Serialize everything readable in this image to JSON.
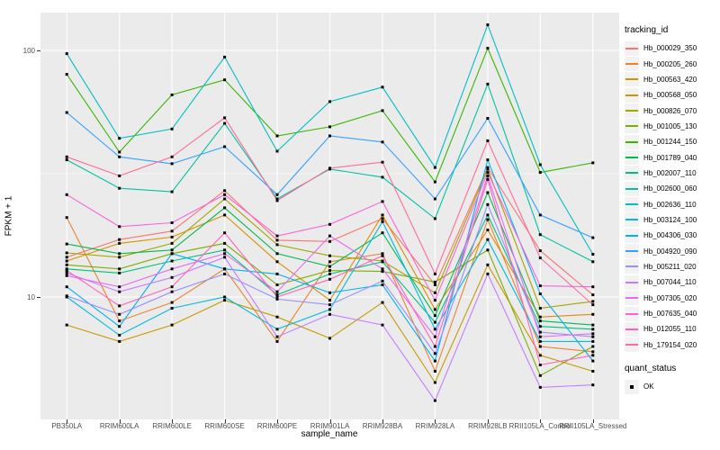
{
  "chart_data": {
    "type": "line",
    "title": "",
    "xlabel": "sample_name",
    "ylabel": "FPKM + 1",
    "y_scale": "log10",
    "y_ticks": [
      100,
      10
    ],
    "ylim": [
      3.2,
      142
    ],
    "grid": true,
    "legend_position": "right",
    "panel_color": "#EBEBEB",
    "gridline_color": "#FFFFFF",
    "point_color": "#000000",
    "categories": [
      "PB350LA",
      "RRIM600LA",
      "RRIM600LE",
      "RRIM600SE",
      "RRIM600PE",
      "RRIM901LA",
      "RRIM928BA",
      "RRIM928LA",
      "RRIM928LB",
      "RRII105LA_Control",
      "RRII105LA_Stressed"
    ],
    "series": [
      {
        "name": "Hb_000029_350",
        "color": "#F8766D",
        "values": [
          14.5,
          17.1,
          18.5,
          27,
          17,
          16.8,
          20.8,
          11.2,
          33.5,
          15.4,
          10.2
        ]
      },
      {
        "name": "Hb_000205_260",
        "color": "#EA8331",
        "values": [
          21,
          8,
          9.5,
          13,
          6.6,
          13.9,
          15,
          5,
          20.6,
          6.3,
          6
        ]
      },
      {
        "name": "Hb_000563_420",
        "color": "#D89000",
        "values": [
          14,
          16.5,
          17.5,
          21.5,
          13.9,
          9.7,
          21.5,
          8.9,
          18.7,
          8.3,
          8.5
        ]
      },
      {
        "name": "Hb_000568_050",
        "color": "#C49A00",
        "values": [
          7.7,
          6.6,
          7.7,
          9.7,
          8.3,
          6.8,
          9.5,
          4.5,
          13.5,
          5.8,
          5
        ]
      },
      {
        "name": "Hb_000826_070",
        "color": "#A3A500",
        "values": [
          15.1,
          14.5,
          16.5,
          25,
          16.3,
          14.7,
          14,
          10.4,
          33,
          9,
          9.6
        ]
      },
      {
        "name": "Hb_001005_130",
        "color": "#7CAE00",
        "values": [
          13.5,
          13,
          15,
          16.5,
          11.2,
          12.8,
          12.7,
          11.5,
          15.5,
          4.8,
          6.3
        ]
      },
      {
        "name": "Hb_001244_150",
        "color": "#39B600",
        "values": [
          80,
          38.7,
          66,
          76,
          45,
          49,
          57,
          29.3,
          102,
          32,
          35
        ]
      },
      {
        "name": "Hb_001789_040",
        "color": "#00BB4E",
        "values": [
          16.4,
          15,
          15.5,
          23,
          15,
          13.3,
          18.2,
          8.4,
          26.5,
          8,
          7.7
        ]
      },
      {
        "name": "Hb_002007_110",
        "color": "#00BF7D",
        "values": [
          13,
          12.5,
          14,
          15.5,
          10.2,
          12.4,
          13.9,
          7.9,
          21.5,
          7.6,
          7.4
        ]
      },
      {
        "name": "Hb_002600_060",
        "color": "#00C1A3",
        "values": [
          36,
          27.6,
          26.7,
          50.6,
          25,
          33,
          30.6,
          20.8,
          73,
          17.9,
          13.9
        ]
      },
      {
        "name": "Hb_002636_110",
        "color": "#00BFC4",
        "values": [
          97,
          44,
          48,
          94,
          39,
          62,
          71,
          33.5,
          127,
          34.4,
          14.9
        ]
      },
      {
        "name": "Hb_003124_100",
        "color": "#00BAE0",
        "values": [
          10,
          7,
          9,
          10,
          7.4,
          8.9,
          20.2,
          7.4,
          17.1,
          6.6,
          6.6
        ]
      },
      {
        "name": "Hb_004306_030",
        "color": "#00B0F6",
        "values": [
          11,
          7.6,
          15,
          13,
          12.4,
          10.4,
          11.2,
          5.5,
          36,
          10.3,
          5.5
        ]
      },
      {
        "name": "Hb_004920_090",
        "color": "#35A2FF",
        "values": [
          56,
          37,
          34.7,
          40.7,
          26,
          45,
          42.5,
          25,
          53,
          21.5,
          17.4
        ]
      },
      {
        "name": "Hb_005211_020",
        "color": "#9590FF",
        "values": [
          10.1,
          8.5,
          10.5,
          12.4,
          9.8,
          9.3,
          11.6,
          5.9,
          23.7,
          7.2,
          6.9
        ]
      },
      {
        "name": "Hb_007044_110",
        "color": "#C77CFF",
        "values": [
          12.5,
          10.5,
          12,
          14.5,
          6.9,
          8.5,
          7.7,
          3.8,
          12.4,
          4.3,
          4.4
        ]
      },
      {
        "name": "Hb_007305_020",
        "color": "#E76BF3",
        "values": [
          12.2,
          11,
          13,
          15,
          10.5,
          17.7,
          13,
          6.9,
          31,
          6.9,
          7.1
        ]
      },
      {
        "name": "Hb_007635_040",
        "color": "#FA62DB",
        "values": [
          26,
          19.3,
          20,
          26,
          17.7,
          19.7,
          24.4,
          9.7,
          32,
          11.1,
          11
        ]
      },
      {
        "name": "Hb_012055_110",
        "color": "#FF62BC",
        "values": [
          12.8,
          9.2,
          11,
          18.2,
          10,
          11.8,
          14.7,
          6.3,
          30,
          5.3,
          5.8
        ]
      },
      {
        "name": "Hb_179154_020",
        "color": "#FF6A98",
        "values": [
          37,
          31,
          37,
          53.3,
          24.6,
          33.3,
          35.2,
          12.4,
          43,
          14.4,
          9.3
        ]
      }
    ],
    "legend": {
      "tracking_title": "tracking_id",
      "quant_title": "quant_status",
      "quant_items": [
        "OK"
      ]
    }
  }
}
